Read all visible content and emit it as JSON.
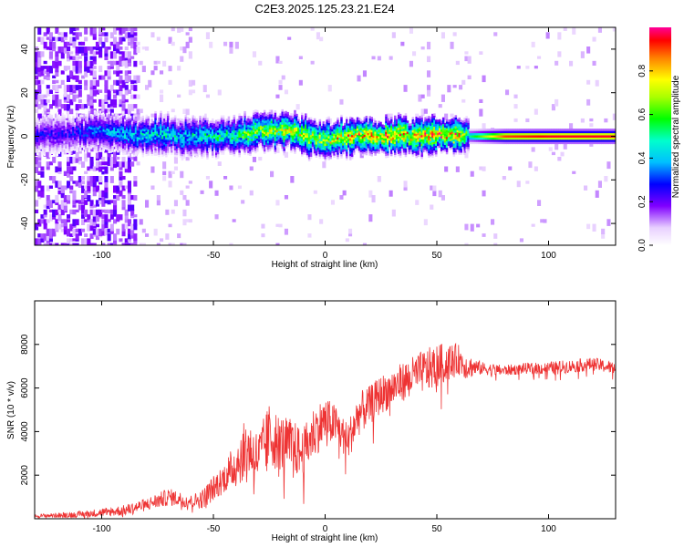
{
  "title": "C2E3.2025.125.23.21.E24",
  "chart_data": [
    {
      "type": "heatmap",
      "xlabel": "Height of straight line (km)",
      "ylabel": "Frequency (Hz)",
      "xlim": [
        -130,
        130
      ],
      "ylim": [
        -50,
        50
      ],
      "x_ticks": [
        -100,
        -50,
        0,
        50,
        100
      ],
      "y_ticks": [
        -40,
        -20,
        0,
        20,
        40
      ],
      "colorbar": {
        "label": "Normalized spectral amplitude",
        "range": [
          0,
          1
        ],
        "ticks": [
          "0.0",
          "0.2",
          "0.4",
          "0.6",
          "0.8"
        ]
      },
      "ridge": {
        "x": [
          -115,
          -105,
          -95,
          -85,
          -75,
          -65,
          -55,
          -45,
          -35,
          -28,
          -20,
          -10,
          0,
          5,
          10,
          15,
          20,
          30,
          40,
          50,
          60,
          64,
          80,
          100,
          120,
          130
        ],
        "freq": [
          1,
          2,
          1,
          0,
          1,
          0,
          0,
          0,
          1,
          3,
          3,
          1,
          -2,
          -1,
          0,
          1,
          0,
          0,
          0,
          1,
          1,
          0,
          0,
          0,
          0,
          0
        ],
        "peak_amplitude": [
          0.3,
          0.4,
          0.45,
          0.5,
          0.55,
          0.5,
          0.55,
          0.6,
          0.7,
          0.8,
          0.8,
          0.85,
          0.8,
          0.85,
          0.9,
          0.9,
          0.95,
          0.95,
          0.95,
          0.95,
          0.95,
          0.5,
          0.9,
          0.95,
          0.95,
          0.95
        ]
      }
    },
    {
      "type": "line",
      "xlabel": "Height of straight line (km)",
      "ylabel": "SNR (10 * v/v)",
      "xlim": [
        -130,
        130
      ],
      "ylim": [
        0,
        10000
      ],
      "x_ticks": [
        -100,
        -50,
        0,
        50,
        100
      ],
      "y_ticks": [
        2000,
        4000,
        6000,
        8000
      ],
      "series": [
        {
          "color": "#ee3333",
          "x": [
            -130,
            -110,
            -90,
            -80,
            -70,
            -60,
            -55,
            -50,
            -45,
            -40,
            -35,
            -30,
            -25,
            -20,
            -15,
            -10,
            -5,
            0,
            5,
            10,
            15,
            20,
            25,
            30,
            35,
            40,
            45,
            50,
            55,
            60,
            63,
            70,
            80,
            90,
            100,
            110,
            120,
            130
          ],
          "values": [
            120,
            200,
            380,
            650,
            1000,
            800,
            900,
            1400,
            1900,
            2500,
            3300,
            2800,
            3800,
            3500,
            3300,
            3000,
            4000,
            4500,
            4300,
            3500,
            4800,
            5200,
            5700,
            6000,
            6300,
            6600,
            6800,
            7000,
            7200,
            7300,
            7000,
            6900,
            6800,
            6900,
            6900,
            7000,
            7100,
            6900
          ],
          "spread": [
            80,
            150,
            250,
            300,
            400,
            300,
            450,
            600,
            700,
            1100,
            1400,
            1200,
            1500,
            1300,
            1300,
            1100,
            1200,
            1100,
            900,
            900,
            1000,
            900,
            900,
            900,
            900,
            900,
            1000,
            1000,
            900,
            700,
            600,
            300,
            250,
            250,
            300,
            300,
            300,
            300
          ]
        }
      ]
    }
  ]
}
